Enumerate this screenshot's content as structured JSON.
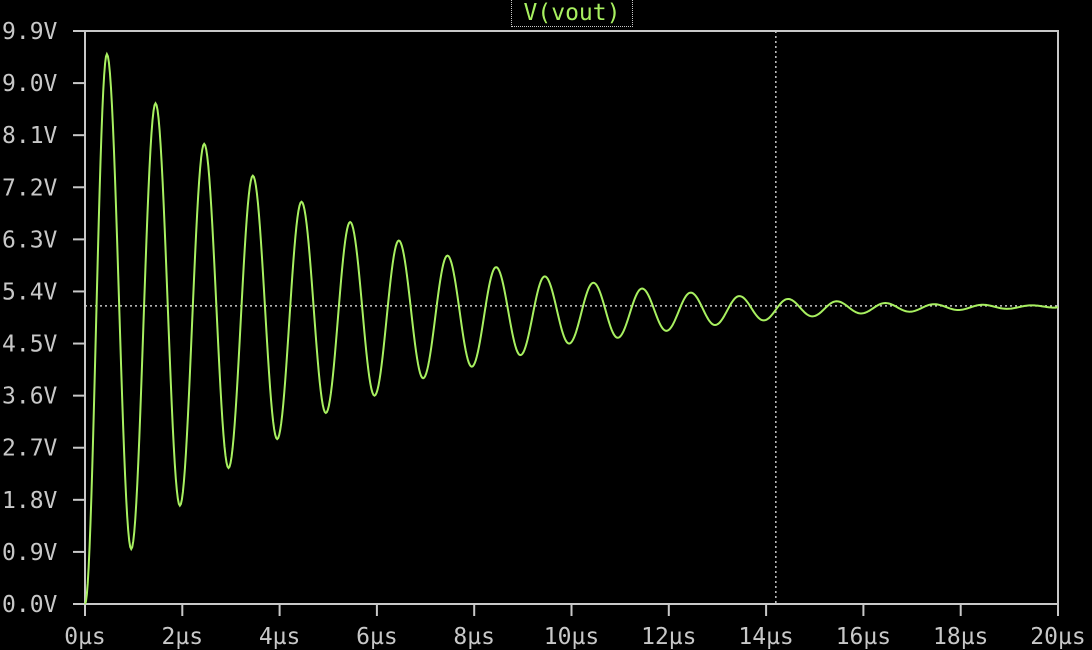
{
  "chart_data": {
    "type": "line",
    "title": "V(vout)",
    "xlabel": "",
    "ylabel": "",
    "x_unit": "µs",
    "y_unit": "V",
    "xlim": [
      0,
      20
    ],
    "ylim": [
      0.0,
      9.9
    ],
    "x_ticks": [
      0,
      2,
      4,
      6,
      8,
      10,
      12,
      14,
      16,
      18,
      20
    ],
    "x_tick_labels": [
      "0µs",
      "2µs",
      "4µs",
      "6µs",
      "8µs",
      "10µs",
      "12µs",
      "14µs",
      "16µs",
      "18µs",
      "20µs"
    ],
    "y_ticks": [
      0.0,
      0.9,
      1.8,
      2.7,
      3.6,
      4.5,
      5.4,
      6.3,
      7.2,
      8.1,
      9.0,
      9.9
    ],
    "y_tick_labels": [
      "0.0V",
      "0.9V",
      "1.8V",
      "2.7V",
      "3.6V",
      "4.5V",
      "5.4V",
      "6.3V",
      "7.2V",
      "8.1V",
      "9.0V",
      "9.9V"
    ],
    "grid": false,
    "cursor": {
      "x": 14.2,
      "y": 5.15
    },
    "series": [
      {
        "name": "V(vout)",
        "color": "#a8f060",
        "description_free": true,
        "steady_state": 5.15,
        "frequency_mhz": 1.0,
        "peaks": [
          [
            0.45,
            9.5
          ],
          [
            1.45,
            8.65
          ],
          [
            2.45,
            7.95
          ],
          [
            3.45,
            7.4
          ],
          [
            4.45,
            6.95
          ],
          [
            5.45,
            6.6
          ],
          [
            6.45,
            6.28
          ],
          [
            7.45,
            6.02
          ],
          [
            8.45,
            5.82
          ],
          [
            9.45,
            5.66
          ],
          [
            10.45,
            5.55
          ],
          [
            11.45,
            5.45
          ],
          [
            12.45,
            5.38
          ],
          [
            13.45,
            5.32
          ],
          [
            14.45,
            5.27
          ],
          [
            15.45,
            5.23
          ],
          [
            16.45,
            5.2
          ],
          [
            17.45,
            5.18
          ],
          [
            18.45,
            5.17
          ],
          [
            19.45,
            5.16
          ]
        ],
        "troughs": [
          [
            0.95,
            0.95
          ],
          [
            1.95,
            1.7
          ],
          [
            2.95,
            2.35
          ],
          [
            3.95,
            2.85
          ],
          [
            4.95,
            3.3
          ],
          [
            5.95,
            3.6
          ],
          [
            6.95,
            3.9
          ],
          [
            7.95,
            4.1
          ],
          [
            8.95,
            4.3
          ],
          [
            9.95,
            4.5
          ],
          [
            10.95,
            4.6
          ],
          [
            11.95,
            4.72
          ],
          [
            12.95,
            4.82
          ],
          [
            13.95,
            4.9
          ],
          [
            14.95,
            4.97
          ],
          [
            15.95,
            5.02
          ],
          [
            16.95,
            5.05
          ],
          [
            17.95,
            5.08
          ],
          [
            18.95,
            5.1
          ],
          [
            19.95,
            5.12
          ]
        ]
      }
    ]
  },
  "colors": {
    "background": "#000000",
    "frame": "#c8c8c8",
    "trace": "#a8f060",
    "text": "#c8c8c8"
  }
}
